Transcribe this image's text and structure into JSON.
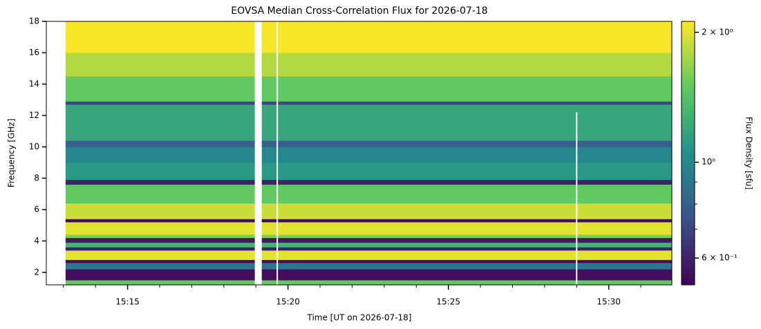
{
  "chart_data": {
    "type": "heatmap",
    "title": "EOVSA Median Cross-Correlation Flux for 2026-07-18",
    "x_label": "Time [UT on 2026-07-18]",
    "y_label": "Frequency [GHz]",
    "colorbar_label": "Flux Density [sfu]",
    "xlim": [
      "15:12:28",
      "15:31:58"
    ],
    "xticks": [
      {
        "value": "15:15:00",
        "label": "15:15"
      },
      {
        "value": "15:20:00",
        "label": "15:20"
      },
      {
        "value": "15:25:00",
        "label": "15:25"
      },
      {
        "value": "15:30:00",
        "label": "15:30"
      }
    ],
    "x_minor_ticks": [
      "15:13:00",
      "15:14:00",
      "15:16:00",
      "15:17:00",
      "15:18:00",
      "15:19:00",
      "15:21:00",
      "15:22:00",
      "15:23:00",
      "15:24:00",
      "15:26:00",
      "15:27:00",
      "15:28:00",
      "15:29:00",
      "15:31:00"
    ],
    "ylim": [
      1.2,
      18
    ],
    "yticks": [
      2,
      4,
      6,
      8,
      10,
      12,
      14,
      16,
      18
    ],
    "clim": [
      0.52,
      2.12
    ],
    "color_scale": "log",
    "colormap": [
      "#440154",
      "#3b528b",
      "#21918c",
      "#5ec962",
      "#fde725"
    ],
    "cticks": [
      {
        "value": 2,
        "label": "2 × 10⁰"
      },
      {
        "value": 1,
        "label": "10⁰"
      },
      {
        "value": 0.6,
        "label": "6 × 10⁻¹"
      }
    ],
    "c_minor_ticks": [
      0.7,
      0.8,
      0.9
    ],
    "segments": [
      [
        "15:13:04",
        "15:18:58"
      ],
      [
        "15:19:11",
        "15:31:58"
      ]
    ],
    "y_edges": [
      1.2,
      1.5,
      2.2,
      2.6,
      2.8,
      3.4,
      3.6,
      3.9,
      4.2,
      4.4,
      5.2,
      5.4,
      6.4,
      7.6,
      7.9,
      9,
      10,
      10.4,
      12.7,
      12.9,
      14.5,
      16,
      18
    ],
    "values": [
      1.5,
      0.55,
      0.9,
      0.55,
      2.0,
      0.6,
      1.3,
      0.58,
      1.6,
      2.0,
      0.55,
      1.9,
      1.5,
      0.6,
      1.1,
      1.0,
      0.8,
      1.2,
      0.7,
      1.5,
      1.8,
      2.1
    ],
    "gaps": [
      {
        "x": "15:19:40",
        "top": 18
      },
      {
        "x": "15:29:00",
        "top": 12.2
      }
    ]
  }
}
